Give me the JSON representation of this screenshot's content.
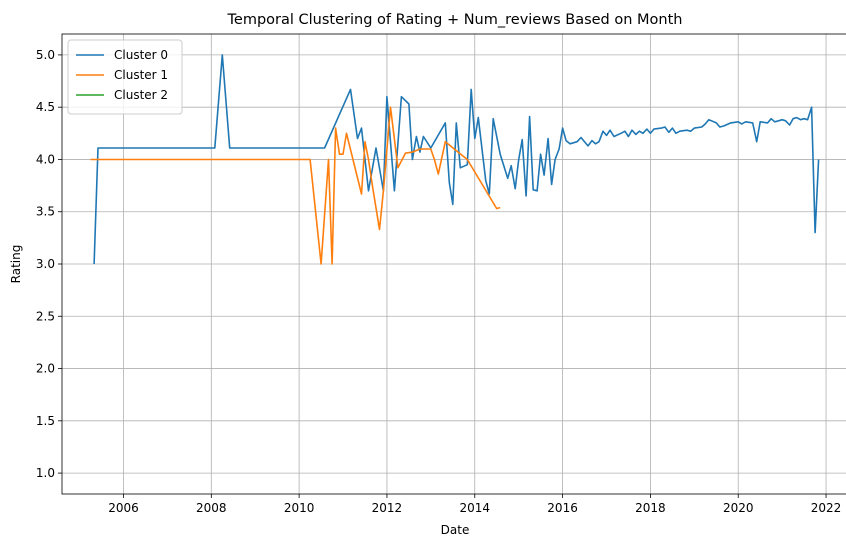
{
  "chart_data": {
    "type": "line",
    "title": "Temporal Clustering of Rating + Num_reviews Based on Month",
    "xlabel": "Date",
    "ylabel": "Rating",
    "xlim": [
      2004.6,
      2022.5
    ],
    "ylim": [
      0.8,
      5.2
    ],
    "x_ticks": [
      2006,
      2008,
      2010,
      2012,
      2014,
      2016,
      2018,
      2020,
      2022
    ],
    "x_tick_labels": [
      "2006",
      "2008",
      "2010",
      "2012",
      "2014",
      "2016",
      "2018",
      "2020",
      "2022"
    ],
    "y_ticks": [
      1.0,
      1.5,
      2.0,
      2.5,
      3.0,
      3.5,
      4.0,
      4.5,
      5.0
    ],
    "y_tick_labels": [
      "1.0",
      "1.5",
      "2.0",
      "2.5",
      "3.0",
      "3.5",
      "4.0",
      "4.5",
      "5.0"
    ],
    "grid": true,
    "legend_position": "top-left",
    "series": [
      {
        "name": "Cluster 0",
        "color": "#1f77b4",
        "points": [
          [
            2005.33,
            3.0
          ],
          [
            2005.42,
            4.11
          ],
          [
            2008.08,
            4.11
          ],
          [
            2008.25,
            5.0
          ],
          [
            2008.42,
            4.11
          ],
          [
            2010.58,
            4.11
          ],
          [
            2011.17,
            4.67
          ],
          [
            2011.33,
            4.2
          ],
          [
            2011.42,
            4.3
          ],
          [
            2011.58,
            3.7
          ],
          [
            2011.75,
            4.11
          ],
          [
            2011.92,
            3.7
          ],
          [
            2012.0,
            4.6
          ],
          [
            2012.17,
            3.7
          ],
          [
            2012.33,
            4.6
          ],
          [
            2012.5,
            4.53
          ],
          [
            2012.58,
            4.0
          ],
          [
            2012.67,
            4.22
          ],
          [
            2012.75,
            4.07
          ],
          [
            2012.83,
            4.22
          ],
          [
            2013.0,
            4.11
          ],
          [
            2013.33,
            4.35
          ],
          [
            2013.42,
            3.78
          ],
          [
            2013.5,
            3.57
          ],
          [
            2013.58,
            4.35
          ],
          [
            2013.67,
            3.92
          ],
          [
            2013.83,
            3.95
          ],
          [
            2013.92,
            4.67
          ],
          [
            2014.0,
            4.2
          ],
          [
            2014.08,
            4.4
          ],
          [
            2014.25,
            3.8
          ],
          [
            2014.33,
            3.67
          ],
          [
            2014.42,
            4.39
          ],
          [
            2014.58,
            4.05
          ],
          [
            2014.75,
            3.82
          ],
          [
            2014.83,
            3.94
          ],
          [
            2014.92,
            3.72
          ],
          [
            2015.0,
            4.0
          ],
          [
            2015.08,
            4.19
          ],
          [
            2015.17,
            3.65
          ],
          [
            2015.25,
            4.41
          ],
          [
            2015.33,
            3.71
          ],
          [
            2015.42,
            3.7
          ],
          [
            2015.5,
            4.05
          ],
          [
            2015.58,
            3.85
          ],
          [
            2015.67,
            4.2
          ],
          [
            2015.75,
            3.76
          ],
          [
            2015.83,
            4.0
          ],
          [
            2015.92,
            4.1
          ],
          [
            2016.0,
            4.3
          ],
          [
            2016.08,
            4.18
          ],
          [
            2016.17,
            4.15
          ],
          [
            2016.33,
            4.17
          ],
          [
            2016.42,
            4.21
          ],
          [
            2016.5,
            4.17
          ],
          [
            2016.58,
            4.13
          ],
          [
            2016.67,
            4.18
          ],
          [
            2016.75,
            4.15
          ],
          [
            2016.83,
            4.17
          ],
          [
            2016.92,
            4.27
          ],
          [
            2017.0,
            4.23
          ],
          [
            2017.08,
            4.28
          ],
          [
            2017.17,
            4.22
          ],
          [
            2017.33,
            4.25
          ],
          [
            2017.42,
            4.27
          ],
          [
            2017.5,
            4.22
          ],
          [
            2017.58,
            4.28
          ],
          [
            2017.67,
            4.24
          ],
          [
            2017.75,
            4.27
          ],
          [
            2017.83,
            4.25
          ],
          [
            2017.92,
            4.29
          ],
          [
            2018.0,
            4.25
          ],
          [
            2018.08,
            4.29
          ],
          [
            2018.25,
            4.3
          ],
          [
            2018.33,
            4.31
          ],
          [
            2018.42,
            4.26
          ],
          [
            2018.5,
            4.3
          ],
          [
            2018.58,
            4.25
          ],
          [
            2018.67,
            4.27
          ],
          [
            2018.83,
            4.28
          ],
          [
            2018.92,
            4.27
          ],
          [
            2019.0,
            4.3
          ],
          [
            2019.17,
            4.31
          ],
          [
            2019.25,
            4.34
          ],
          [
            2019.33,
            4.38
          ],
          [
            2019.5,
            4.35
          ],
          [
            2019.58,
            4.31
          ],
          [
            2019.67,
            4.32
          ],
          [
            2019.83,
            4.35
          ],
          [
            2020.0,
            4.36
          ],
          [
            2020.08,
            4.34
          ],
          [
            2020.17,
            4.36
          ],
          [
            2020.33,
            4.35
          ],
          [
            2020.42,
            4.17
          ],
          [
            2020.5,
            4.36
          ],
          [
            2020.67,
            4.35
          ],
          [
            2020.75,
            4.39
          ],
          [
            2020.83,
            4.36
          ],
          [
            2020.92,
            4.37
          ],
          [
            2021.0,
            4.38
          ],
          [
            2021.08,
            4.37
          ],
          [
            2021.17,
            4.33
          ],
          [
            2021.25,
            4.39
          ],
          [
            2021.33,
            4.4
          ],
          [
            2021.42,
            4.38
          ],
          [
            2021.5,
            4.39
          ],
          [
            2021.58,
            4.38
          ],
          [
            2021.67,
            4.5
          ],
          [
            2021.75,
            3.3
          ],
          [
            2021.83,
            4.0
          ]
        ]
      },
      {
        "name": "Cluster 1",
        "color": "#ff7f0e",
        "points": [
          [
            2005.25,
            4.0
          ],
          [
            2010.25,
            4.0
          ],
          [
            2010.5,
            3.0
          ],
          [
            2010.67,
            4.0
          ],
          [
            2010.75,
            3.0
          ],
          [
            2010.83,
            4.3
          ],
          [
            2010.92,
            4.05
          ],
          [
            2011.0,
            4.05
          ],
          [
            2011.08,
            4.25
          ],
          [
            2011.42,
            3.67
          ],
          [
            2011.5,
            4.17
          ],
          [
            2011.58,
            4.0
          ],
          [
            2011.67,
            3.75
          ],
          [
            2011.83,
            3.33
          ],
          [
            2011.92,
            3.7
          ],
          [
            2012.08,
            4.5
          ],
          [
            2012.25,
            3.92
          ],
          [
            2012.42,
            4.06
          ],
          [
            2012.58,
            4.07
          ],
          [
            2012.75,
            4.1
          ],
          [
            2013.0,
            4.1
          ],
          [
            2013.08,
            4.0
          ],
          [
            2013.17,
            3.86
          ],
          [
            2013.33,
            4.17
          ],
          [
            2013.83,
            4.0
          ],
          [
            2014.5,
            3.53
          ],
          [
            2014.58,
            3.54
          ]
        ]
      },
      {
        "name": "Cluster 2",
        "color": "#2ca02c",
        "points": []
      }
    ]
  }
}
